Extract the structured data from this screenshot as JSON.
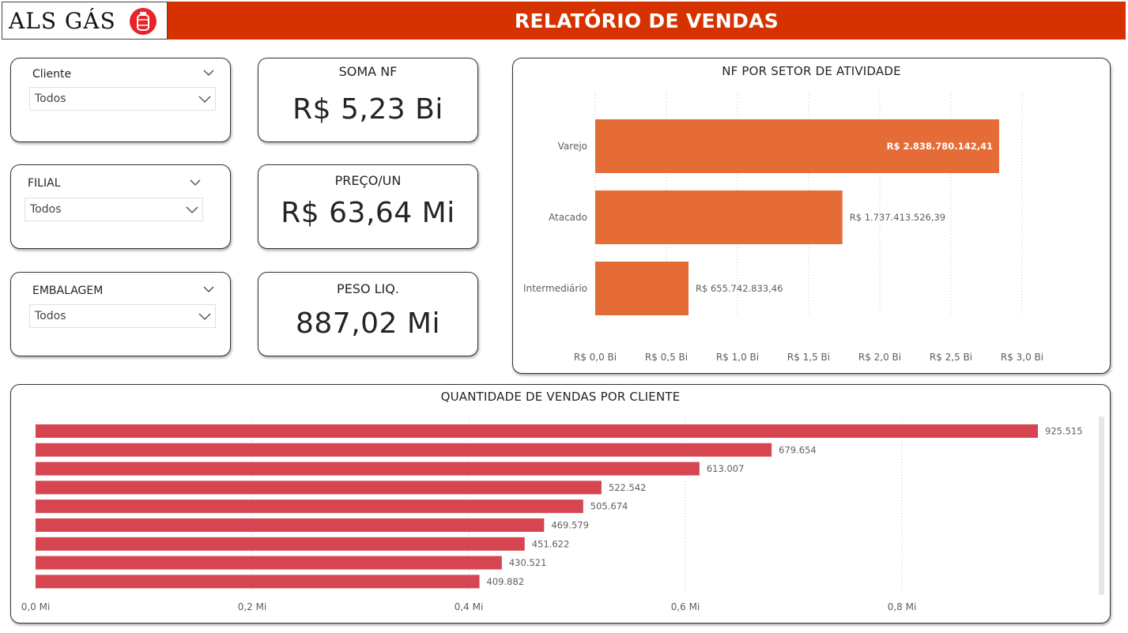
{
  "header": {
    "logo_text": "ALS GÁS",
    "title": "RELATÓRIO DE VENDAS"
  },
  "slicers": [
    {
      "title": "Cliente",
      "value": "Todos"
    },
    {
      "title": "FILIAL",
      "value": "Todos"
    },
    {
      "title": "EMBALAGEM",
      "value": "Todos"
    }
  ],
  "kpis": [
    {
      "label": "SOMA NF",
      "value": "R$ 5,23 Bi"
    },
    {
      "label": "PREÇO/UN",
      "value": "R$ 63,64 Mi"
    },
    {
      "label": "PESO LIQ.",
      "value": "887,02 Mi"
    }
  ],
  "colors": {
    "header_red": "#d63200",
    "sector_bar": "#e66c37",
    "client_bar": "#d64550"
  },
  "chart_data": [
    {
      "type": "bar",
      "orientation": "horizontal",
      "title": "NF POR SETOR DE ATIVIDADE",
      "categories": [
        "Varejo",
        "Atacado",
        "Intermediário"
      ],
      "values": [
        2838780142.41,
        1737413526.39,
        655742833.46
      ],
      "data_labels": [
        "R$ 2.838.780.142,41",
        "R$ 1.737.413.526,39",
        "R$ 655.742.833,46"
      ],
      "xlim": [
        0,
        3000000000
      ],
      "ticks": [
        0,
        500000000,
        1000000000,
        1500000000,
        2000000000,
        2500000000,
        3000000000
      ],
      "tick_labels": [
        "R$ 0,0 Bi",
        "R$ 0,5 Bi",
        "R$ 1,0 Bi",
        "R$ 1,5 Bi",
        "R$ 2,0 Bi",
        "R$ 2,5 Bi",
        "R$ 3,0 Bi"
      ],
      "grid": true
    },
    {
      "type": "bar",
      "orientation": "horizontal",
      "title": "QUANTIDADE DE VENDAS POR CLIENTE",
      "values": [
        925515,
        679654,
        613007,
        522542,
        505674,
        469579,
        451622,
        430521,
        409882
      ],
      "data_labels": [
        "925.515",
        "679.654",
        "613.007",
        "522.542",
        "505.674",
        "469.579",
        "451.622",
        "430.521",
        "409.882"
      ],
      "xlim": [
        0,
        925515
      ],
      "ticks": [
        0,
        200000,
        400000,
        600000,
        800000
      ],
      "tick_labels": [
        "0,0 Mi",
        "0,2 Mi",
        "0,4 Mi",
        "0,6 Mi",
        "0,8 Mi"
      ],
      "grid": true
    }
  ]
}
